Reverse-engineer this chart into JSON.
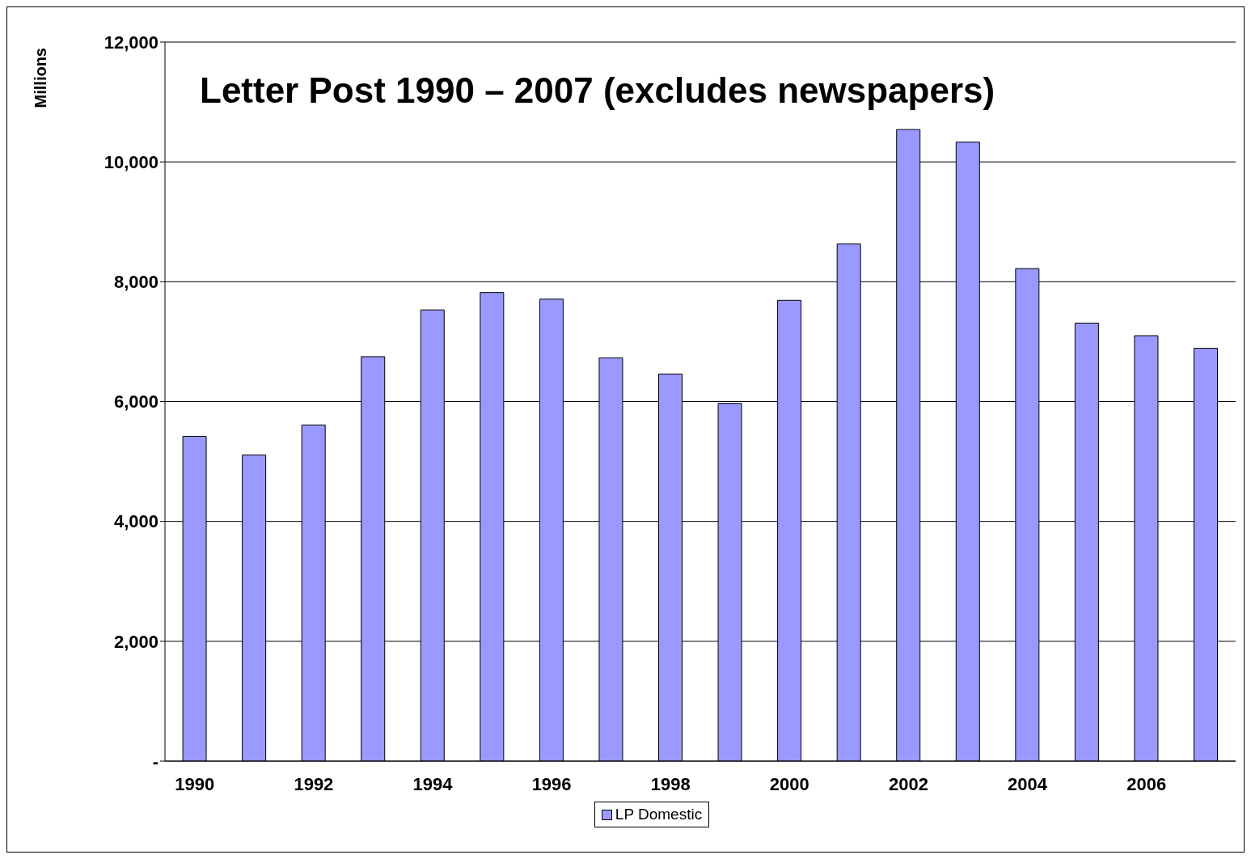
{
  "chart_data": {
    "type": "bar",
    "title": "Letter Post 1990 – 2007 (excludes newspapers)",
    "ylabel": "Millions",
    "categories": [
      "1990",
      null,
      "1992",
      null,
      "1994",
      null,
      "1996",
      null,
      "1998",
      null,
      "2000",
      null,
      "2002",
      null,
      "2004",
      null,
      "2006",
      null
    ],
    "series": [
      {
        "name": "LP Domestic",
        "color": "#9999ff",
        "values": [
          5420,
          5110,
          5610,
          6750,
          7530,
          7820,
          7710,
          6730,
          6460,
          5970,
          7690,
          8630,
          10540,
          10330,
          8220,
          7310,
          7100,
          6890
        ]
      }
    ],
    "ylim": [
      0,
      12000
    ],
    "yticks": [
      {
        "value": 0,
        "label": "-"
      },
      {
        "value": 2000,
        "label": "2,000"
      },
      {
        "value": 4000,
        "label": "4,000"
      },
      {
        "value": 6000,
        "label": "6,000"
      },
      {
        "value": 8000,
        "label": "8,000"
      },
      {
        "value": 10000,
        "label": "10,000"
      },
      {
        "value": 12000,
        "label": "12,000"
      }
    ],
    "grid": "y",
    "legend": "bottom"
  }
}
